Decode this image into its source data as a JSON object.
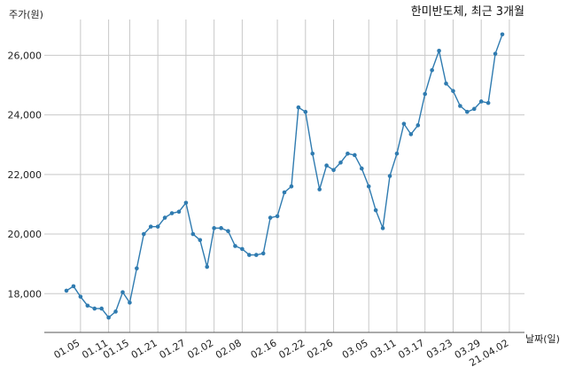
{
  "chart_data": {
    "type": "line",
    "title": "한미반도체, 최근 3개월",
    "xlabel": "날짜(일)",
    "ylabel": "주가(원)",
    "ylim": [
      16700,
      27200
    ],
    "yticks": [
      18000,
      20000,
      22000,
      24000,
      26000
    ],
    "ytick_labels": [
      "18,000",
      "20,000",
      "22,000",
      "24,000",
      "26,000"
    ],
    "xtick_labels": [
      "01.05",
      "01.11",
      "01.15",
      "01.21",
      "01.27",
      "02.02",
      "02.08",
      "02.16",
      "02.22",
      "02.26",
      "03.05",
      "03.11",
      "03.17",
      "03.23",
      "03.29",
      "21.04.02"
    ],
    "xtick_index": [
      2,
      6,
      9,
      13,
      17,
      21,
      25,
      30,
      34,
      38,
      43,
      47,
      51,
      55,
      59,
      63
    ],
    "grid": true,
    "color": "#2f7bb0",
    "series": [
      {
        "values": [
          18100,
          18250,
          17900,
          17600,
          17500,
          17500,
          17200,
          17400,
          18050,
          17700,
          18850,
          20000,
          20250,
          20250,
          20550,
          20700,
          20750,
          21050,
          20000,
          19800,
          18900,
          20200,
          20200,
          20100,
          19600,
          19500,
          19300,
          19300,
          19350,
          20550,
          20600,
          21400,
          21600,
          24250,
          24100,
          22700,
          21500,
          22300,
          22150,
          22400,
          22700,
          22650,
          22200,
          21600,
          20800,
          20200,
          21950,
          22700,
          23700,
          23350,
          23650,
          24700,
          25500,
          26150,
          25050,
          24800,
          24300,
          24100,
          24200,
          24450,
          24400,
          26050,
          26700
        ]
      }
    ]
  }
}
